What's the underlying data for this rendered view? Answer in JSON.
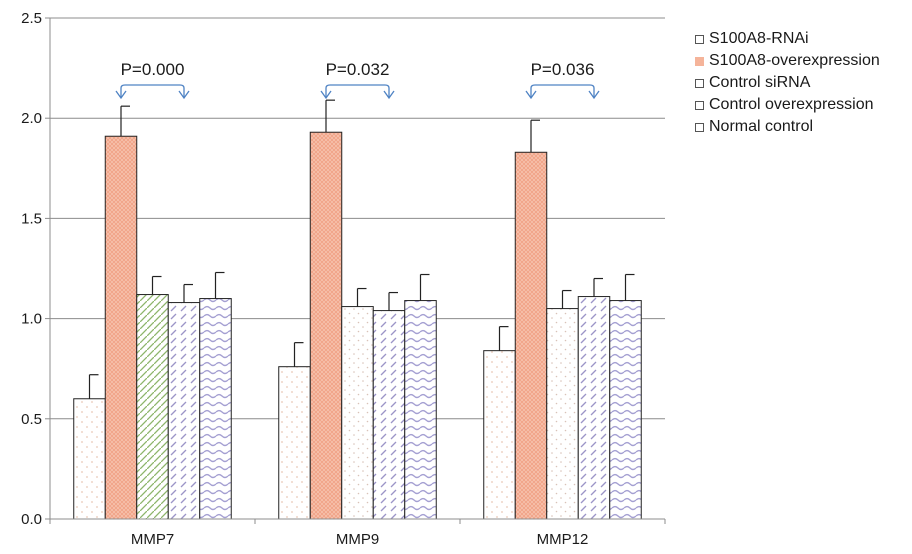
{
  "chart_data": {
    "type": "bar",
    "categories": [
      "MMP7",
      "MMP9",
      "MMP12"
    ],
    "ylim": [
      0,
      2.5
    ],
    "yticks": [
      "0.0",
      "0.5",
      "1.0",
      "1.5",
      "2.0",
      "2.5"
    ],
    "grid": true,
    "legend_position": "right",
    "series": [
      {
        "name": "S100A8-RNAi",
        "values": [
          0.6,
          0.76,
          0.84
        ],
        "errors": [
          0.12,
          0.12,
          0.12
        ],
        "color": "#f3e0d8",
        "pattern": "dots"
      },
      {
        "name": "S100A8-overexpression",
        "values": [
          1.91,
          1.93,
          1.83
        ],
        "errors": [
          0.15,
          0.16,
          0.16
        ],
        "color": "#f5b49a",
        "pattern": "hatch"
      },
      {
        "name": "Control siRNA",
        "values": [
          1.12,
          1.06,
          1.05
        ],
        "errors": [
          0.09,
          0.09,
          0.09
        ],
        "color": "#8db56a",
        "pattern": "diag-first"
      },
      {
        "name": "Control overexpression",
        "values": [
          1.08,
          1.04,
          1.11
        ],
        "errors": [
          0.09,
          0.09,
          0.09
        ],
        "color": "#9c95c8",
        "pattern": "dash-diag"
      },
      {
        "name": "Normal control",
        "values": [
          1.1,
          1.09,
          1.09
        ],
        "errors": [
          0.13,
          0.13,
          0.13
        ],
        "color": "#a49fd2",
        "pattern": "wave"
      }
    ],
    "annotations": [
      {
        "category": "MMP7",
        "text": "P=0.000"
      },
      {
        "category": "MMP9",
        "text": "P=0.032"
      },
      {
        "category": "MMP12",
        "text": "P=0.036"
      }
    ],
    "arrow_color": "#4f83c4"
  }
}
